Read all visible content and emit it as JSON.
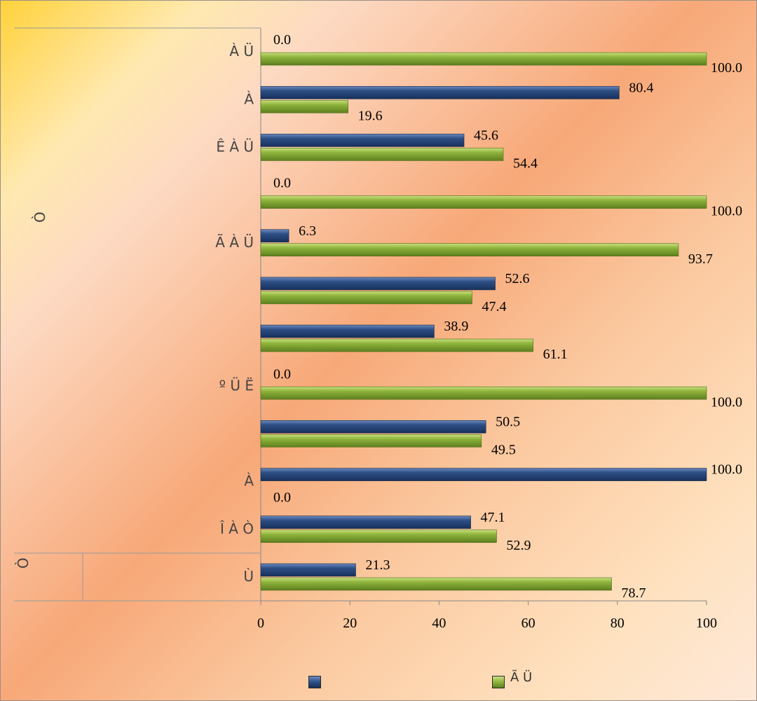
{
  "chart_data": {
    "type": "bar",
    "orientation": "horizontal",
    "xlim": [
      0,
      100
    ],
    "xticks": [
      "0",
      "20",
      "40",
      "60",
      "80",
      "100"
    ],
    "categories": [
      "À Ü",
      "À",
      "Ê         À Ü",
      "",
      "Ã              À Ü",
      "",
      "",
      "º        Ü    Ë",
      "",
      "À",
      "Î          À    Ò",
      "Ù"
    ],
    "group_labels": [
      "Ò",
      "Ò"
    ],
    "series": [
      {
        "name": "",
        "color": "#2d4f86",
        "values": [
          0.0,
          80.4,
          45.6,
          0.0,
          6.3,
          52.6,
          38.9,
          0.0,
          50.5,
          100.0,
          47.1,
          21.3
        ]
      },
      {
        "name": "Ã      Ü",
        "color": "#8fb43c",
        "values": [
          100.0,
          19.6,
          54.4,
          100.0,
          93.7,
          47.4,
          61.1,
          100.0,
          49.5,
          0.0,
          52.9,
          78.7
        ]
      }
    ],
    "value_labels": {
      "series1": [
        "0.0",
        "80.4",
        "45.6",
        "0.0",
        "6.3",
        "52.6",
        "38.9",
        "0.0",
        "50.5",
        "100.0",
        "47.1",
        "21.3"
      ],
      "series2": [
        "100.0",
        "19.6",
        "54.4",
        "100.0",
        "93.7",
        "47.4",
        "61.1",
        "100.0",
        "49.5",
        "0.0",
        "52.9",
        "78.7"
      ]
    },
    "grid": false,
    "legend": "bottom"
  }
}
